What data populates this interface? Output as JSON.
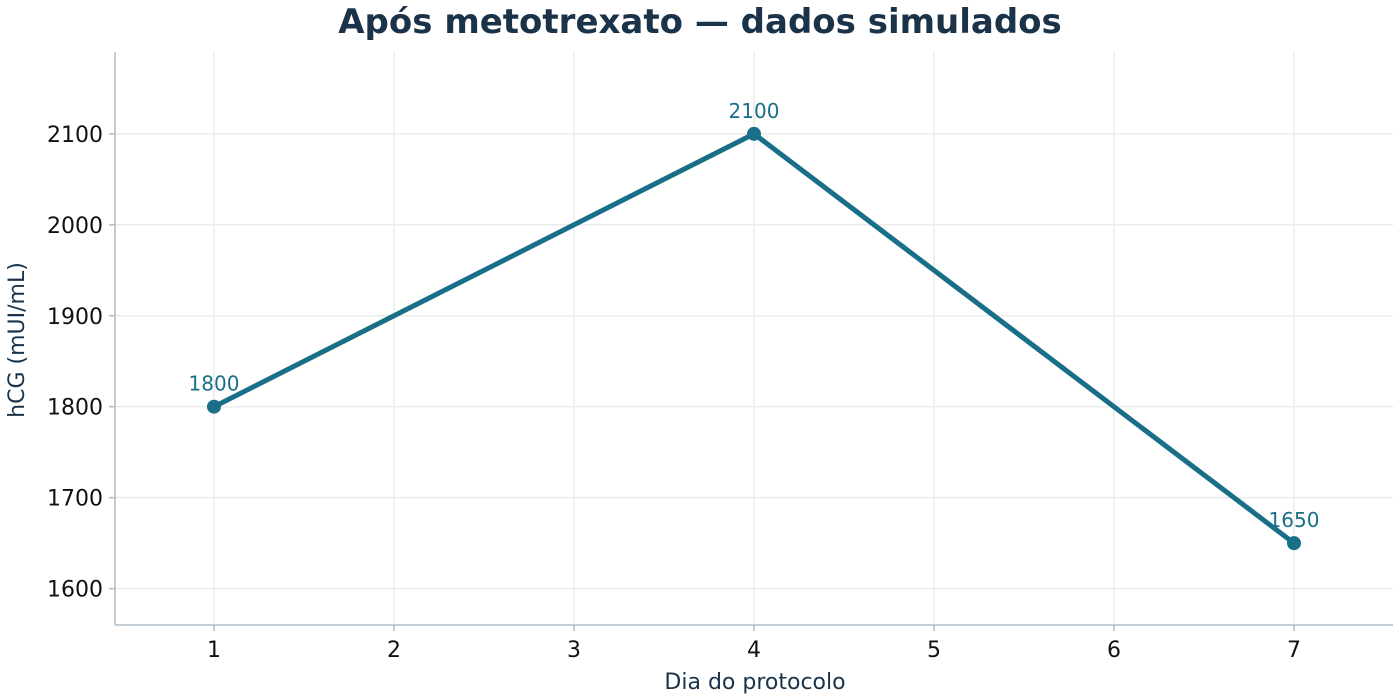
{
  "chart_data": {
    "type": "line",
    "title": "Após metotrexato — dados simulados",
    "xlabel": "Dia do protocolo",
    "ylabel": "hCG (mUI/mL)",
    "x": [
      1,
      4,
      7
    ],
    "series": [
      {
        "values": [
          1800,
          2100,
          1650
        ],
        "data_labels": [
          "1800",
          "2100",
          "1650"
        ]
      }
    ],
    "xticks": [
      1,
      2,
      3,
      4,
      5,
      6,
      7
    ],
    "yticks": [
      1600,
      1700,
      1800,
      1900,
      2000,
      2100
    ],
    "xlim": [
      0.45,
      7.55
    ],
    "ylim": [
      1560,
      2190
    ],
    "grid": true,
    "legend": "none",
    "colors": {
      "line": "#1a6f88",
      "title": "#1b3349",
      "grid": "#ebebeb",
      "axis": "#b0bcc6"
    }
  }
}
